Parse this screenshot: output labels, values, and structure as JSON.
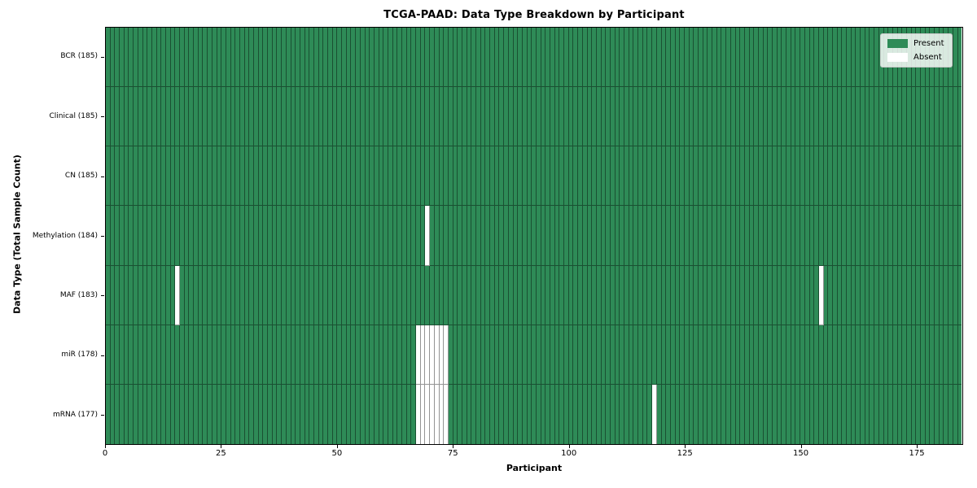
{
  "chart_data": {
    "type": "heatmap",
    "title": "TCGA-PAAD: Data Type Breakdown by Participant",
    "xlabel": "Participant",
    "ylabel": "Data Type (Total Sample Count)",
    "x_ticks": [
      0,
      25,
      50,
      75,
      100,
      125,
      150,
      175
    ],
    "x_range": [
      0,
      185
    ],
    "n_participants": 185,
    "grid": "cell-edges",
    "colors": {
      "present": "#2e8b57",
      "absent": "#ffffff",
      "cell_edge": "rgba(0,0,0,0.42)"
    },
    "legend": {
      "position": "upper right",
      "entries": [
        {
          "label": "Present",
          "color": "#2e8b57"
        },
        {
          "label": "Absent",
          "color": "#ffffff"
        }
      ]
    },
    "rows": [
      {
        "label": "BCR (185)",
        "data_type": "BCR",
        "total_samples": 185,
        "absent_participants": []
      },
      {
        "label": "Clinical (185)",
        "data_type": "Clinical",
        "total_samples": 185,
        "absent_participants": []
      },
      {
        "label": "CN (185)",
        "data_type": "CN",
        "total_samples": 185,
        "absent_participants": []
      },
      {
        "label": "Methylation (184)",
        "data_type": "Methylation",
        "total_samples": 184,
        "absent_participants": [
          69
        ]
      },
      {
        "label": "MAF (183)",
        "data_type": "MAF",
        "total_samples": 183,
        "absent_participants": [
          15,
          154
        ]
      },
      {
        "label": "miR (178)",
        "data_type": "miR",
        "total_samples": 178,
        "absent_participants": [
          67,
          68,
          69,
          70,
          71,
          72,
          73
        ]
      },
      {
        "label": "mRNA (177)",
        "data_type": "mRNA",
        "total_samples": 177,
        "absent_participants": [
          67,
          68,
          69,
          70,
          71,
          72,
          73,
          118
        ]
      }
    ]
  }
}
